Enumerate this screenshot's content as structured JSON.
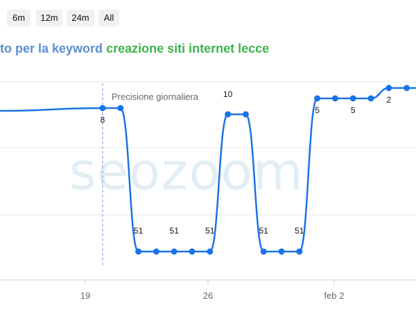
{
  "range_buttons": [
    "6m",
    "12m",
    "24m",
    "All"
  ],
  "title": {
    "prefix": "to per la keyword",
    "keyword": "creazione siti internet lecce"
  },
  "watermark": "seozoom",
  "colors": {
    "line": "#1a73e8",
    "title_prefix": "#5b8fd3",
    "title_keyword": "#3cb44b",
    "annotation_line": "#8a93e6"
  },
  "chart_data": {
    "type": "line",
    "y_reversed": true,
    "grid": true,
    "x_tick_labels": [
      "19",
      "26",
      "feb 2"
    ],
    "annotation": {
      "label": "Precisione giornaliera",
      "at_index": 0
    },
    "series": [
      {
        "points": [
          {
            "i": 0,
            "y": 8,
            "label": "8"
          },
          {
            "i": 1,
            "y": 8,
            "label": ""
          },
          {
            "i": 2,
            "y": 51,
            "label": "51"
          },
          {
            "i": 3,
            "y": 51,
            "label": ""
          },
          {
            "i": 4,
            "y": 51,
            "label": "51"
          },
          {
            "i": 5,
            "y": 51,
            "label": ""
          },
          {
            "i": 6,
            "y": 51,
            "label": "51"
          },
          {
            "i": 7,
            "y": 10,
            "label": "10"
          },
          {
            "i": 8,
            "y": 10,
            "label": ""
          },
          {
            "i": 9,
            "y": 51,
            "label": "51"
          },
          {
            "i": 10,
            "y": 51,
            "label": ""
          },
          {
            "i": 11,
            "y": 51,
            "label": "51"
          },
          {
            "i": 12,
            "y": 5,
            "label": "5"
          },
          {
            "i": 13,
            "y": 5,
            "label": ""
          },
          {
            "i": 14,
            "y": 5,
            "label": "5"
          },
          {
            "i": 15,
            "y": 5,
            "label": ""
          },
          {
            "i": 16,
            "y": 2,
            "label": "2"
          },
          {
            "i": 17,
            "y": 2,
            "label": ""
          },
          {
            "i": 18,
            "y": 2,
            "label": ""
          }
        ]
      }
    ]
  }
}
